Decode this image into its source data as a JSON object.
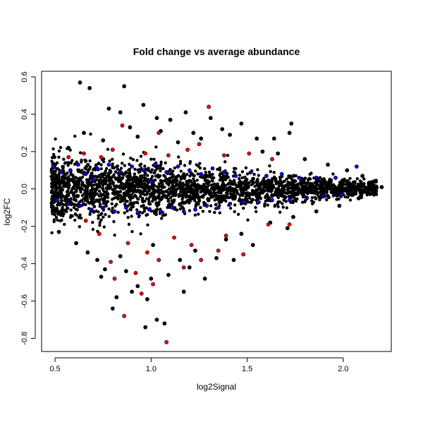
{
  "chart_data": {
    "type": "scatter",
    "title": "Fold change vs average abundance",
    "xlabel": "log2Signal",
    "ylabel": "log2FC",
    "xlim": [
      0.43,
      2.25
    ],
    "ylim": [
      -0.87,
      0.63
    ],
    "xticks": [
      0.5,
      1.0,
      1.5,
      2.0
    ],
    "xtick_labels": [
      "0.5",
      "1.0",
      "1.5",
      "2.0"
    ],
    "yticks": [
      -0.8,
      -0.6,
      -0.4,
      -0.2,
      0.0,
      0.2,
      0.4,
      0.6
    ],
    "ytick_labels": [
      "-0.8",
      "-0.6",
      "-0.4",
      "-0.2",
      "0.0",
      "0.2",
      "0.4",
      "0.6"
    ],
    "grid": false,
    "series": [
      {
        "color": "#000000",
        "points": [
          [
            0.63,
            0.57
          ],
          [
            0.68,
            0.54
          ],
          [
            0.86,
            0.55
          ],
          [
            0.78,
            0.43
          ],
          [
            0.84,
            0.41
          ],
          [
            0.96,
            0.45
          ],
          [
            1.18,
            0.41
          ],
          [
            1.03,
            0.38
          ],
          [
            1.31,
            0.38
          ],
          [
            1.1,
            0.37
          ],
          [
            0.89,
            0.33
          ],
          [
            1.37,
            0.32
          ],
          [
            1.47,
            0.35
          ],
          [
            1.73,
            0.35
          ],
          [
            1.72,
            0.3
          ],
          [
            1.64,
            0.27
          ],
          [
            1.55,
            0.27
          ],
          [
            0.65,
            0.3
          ],
          [
            1.22,
            0.3
          ],
          [
            1.05,
            0.31
          ],
          [
            0.93,
            0.28
          ],
          [
            1.26,
            0.27
          ],
          [
            1.41,
            0.29
          ],
          [
            0.75,
            0.26
          ],
          [
            1.14,
            0.25
          ],
          [
            0.57,
            0.22
          ],
          [
            1.58,
            0.2
          ],
          [
            1.66,
            0.19
          ],
          [
            1.8,
            0.16
          ],
          [
            1.92,
            0.13
          ],
          [
            2.02,
            0.1
          ],
          [
            2.1,
            0.07
          ],
          [
            2.17,
            0.04
          ],
          [
            2.2,
            0.01
          ],
          [
            2.16,
            -0.03
          ],
          [
            2.08,
            -0.05
          ],
          [
            1.98,
            -0.09
          ],
          [
            1.86,
            -0.12
          ],
          [
            1.74,
            -0.15
          ],
          [
            1.62,
            -0.18
          ],
          [
            0.8,
            -0.64
          ],
          [
            0.97,
            -0.74
          ],
          [
            1.07,
            -0.72
          ],
          [
            1.03,
            -0.7
          ],
          [
            0.82,
            -0.58
          ],
          [
            0.74,
            -0.47
          ],
          [
            0.9,
            -0.55
          ],
          [
            0.98,
            -0.59
          ],
          [
            0.93,
            -0.52
          ],
          [
            1.17,
            -0.55
          ],
          [
            1.0,
            -0.48
          ],
          [
            0.76,
            -0.43
          ],
          [
            1.28,
            -0.48
          ],
          [
            1.2,
            -0.42
          ],
          [
            0.72,
            -0.38
          ],
          [
            1.15,
            -0.38
          ],
          [
            1.34,
            -0.37
          ],
          [
            1.43,
            -0.38
          ],
          [
            0.87,
            -0.44
          ],
          [
            1.09,
            -0.46
          ],
          [
            0.67,
            -0.34
          ],
          [
            0.61,
            -0.29
          ],
          [
            0.52,
            -0.23
          ],
          [
            1.23,
            -0.33
          ],
          [
            1.53,
            -0.3
          ],
          [
            1.39,
            -0.27
          ],
          [
            1.01,
            -0.3
          ],
          [
            0.84,
            -0.36
          ],
          [
            1.47,
            -0.24
          ],
          [
            1.71,
            -0.21
          ]
        ]
      },
      {
        "color": "#0000ff",
        "points": [
          [
            0.49,
            0.12
          ],
          [
            0.53,
            0.09
          ],
          [
            0.58,
            0.1
          ],
          [
            0.62,
            0.13
          ],
          [
            0.66,
            0.08
          ],
          [
            0.72,
            0.11
          ],
          [
            0.78,
            0.13
          ],
          [
            0.84,
            0.09
          ],
          [
            0.9,
            0.12
          ],
          [
            0.96,
            0.1
          ],
          [
            1.02,
            0.13
          ],
          [
            1.08,
            0.09
          ],
          [
            1.14,
            0.12
          ],
          [
            1.2,
            0.1
          ],
          [
            1.26,
            0.08
          ],
          [
            1.32,
            0.11
          ],
          [
            1.38,
            0.09
          ],
          [
            1.44,
            0.07
          ],
          [
            1.52,
            0.09
          ],
          [
            1.6,
            0.07
          ],
          [
            1.68,
            0.08
          ],
          [
            1.77,
            0.06
          ],
          [
            1.86,
            0.06
          ],
          [
            1.96,
            0.06
          ],
          [
            2.07,
            0.12
          ],
          [
            0.51,
            -0.06
          ],
          [
            0.57,
            -0.08
          ],
          [
            0.63,
            -0.09
          ],
          [
            0.69,
            -0.11
          ],
          [
            0.75,
            -0.1
          ],
          [
            0.81,
            -0.12
          ],
          [
            0.87,
            -0.1
          ],
          [
            0.93,
            -0.13
          ],
          [
            0.99,
            -0.11
          ],
          [
            1.05,
            -0.12
          ],
          [
            1.11,
            -0.1
          ],
          [
            1.17,
            -0.12
          ],
          [
            1.23,
            -0.11
          ],
          [
            1.29,
            -0.09
          ],
          [
            1.35,
            -0.1
          ],
          [
            1.41,
            -0.08
          ],
          [
            1.48,
            -0.07
          ],
          [
            1.56,
            -0.07
          ],
          [
            1.63,
            -0.06
          ],
          [
            1.72,
            -0.06
          ],
          [
            1.81,
            -0.05
          ],
          [
            1.9,
            -0.04
          ],
          [
            1.99,
            -0.03
          ],
          [
            0.7,
            0.05
          ],
          [
            1.0,
            0.04
          ]
        ]
      },
      {
        "color": "#ff0000",
        "points": [
          [
            1.3,
            0.44
          ],
          [
            0.85,
            0.34
          ],
          [
            1.04,
            0.3
          ],
          [
            1.25,
            0.24
          ],
          [
            1.51,
            0.19
          ],
          [
            0.57,
            0.17
          ],
          [
            0.65,
            0.19
          ],
          [
            0.74,
            0.17
          ],
          [
            0.8,
            0.21
          ],
          [
            0.97,
            0.19
          ],
          [
            1.09,
            0.18
          ],
          [
            1.19,
            0.21
          ],
          [
            1.38,
            0.18
          ],
          [
            1.63,
            0.16
          ],
          [
            1.08,
            -0.82
          ],
          [
            0.86,
            -0.68
          ],
          [
            0.95,
            -0.56
          ],
          [
            1.01,
            -0.51
          ],
          [
            0.81,
            -0.48
          ],
          [
            0.92,
            -0.45
          ],
          [
            1.04,
            -0.38
          ],
          [
            1.17,
            -0.42
          ],
          [
            1.26,
            -0.38
          ],
          [
            1.35,
            -0.33
          ],
          [
            1.48,
            -0.35
          ],
          [
            1.61,
            -0.19
          ],
          [
            1.72,
            -0.19
          ],
          [
            0.73,
            -0.24
          ],
          [
            0.88,
            -0.29
          ],
          [
            1.12,
            -0.26
          ],
          [
            0.66,
            -0.17
          ],
          [
            1.39,
            -0.25
          ],
          [
            0.98,
            -0.34
          ],
          [
            1.21,
            -0.3
          ],
          [
            0.79,
            -0.39
          ]
        ]
      }
    ]
  }
}
